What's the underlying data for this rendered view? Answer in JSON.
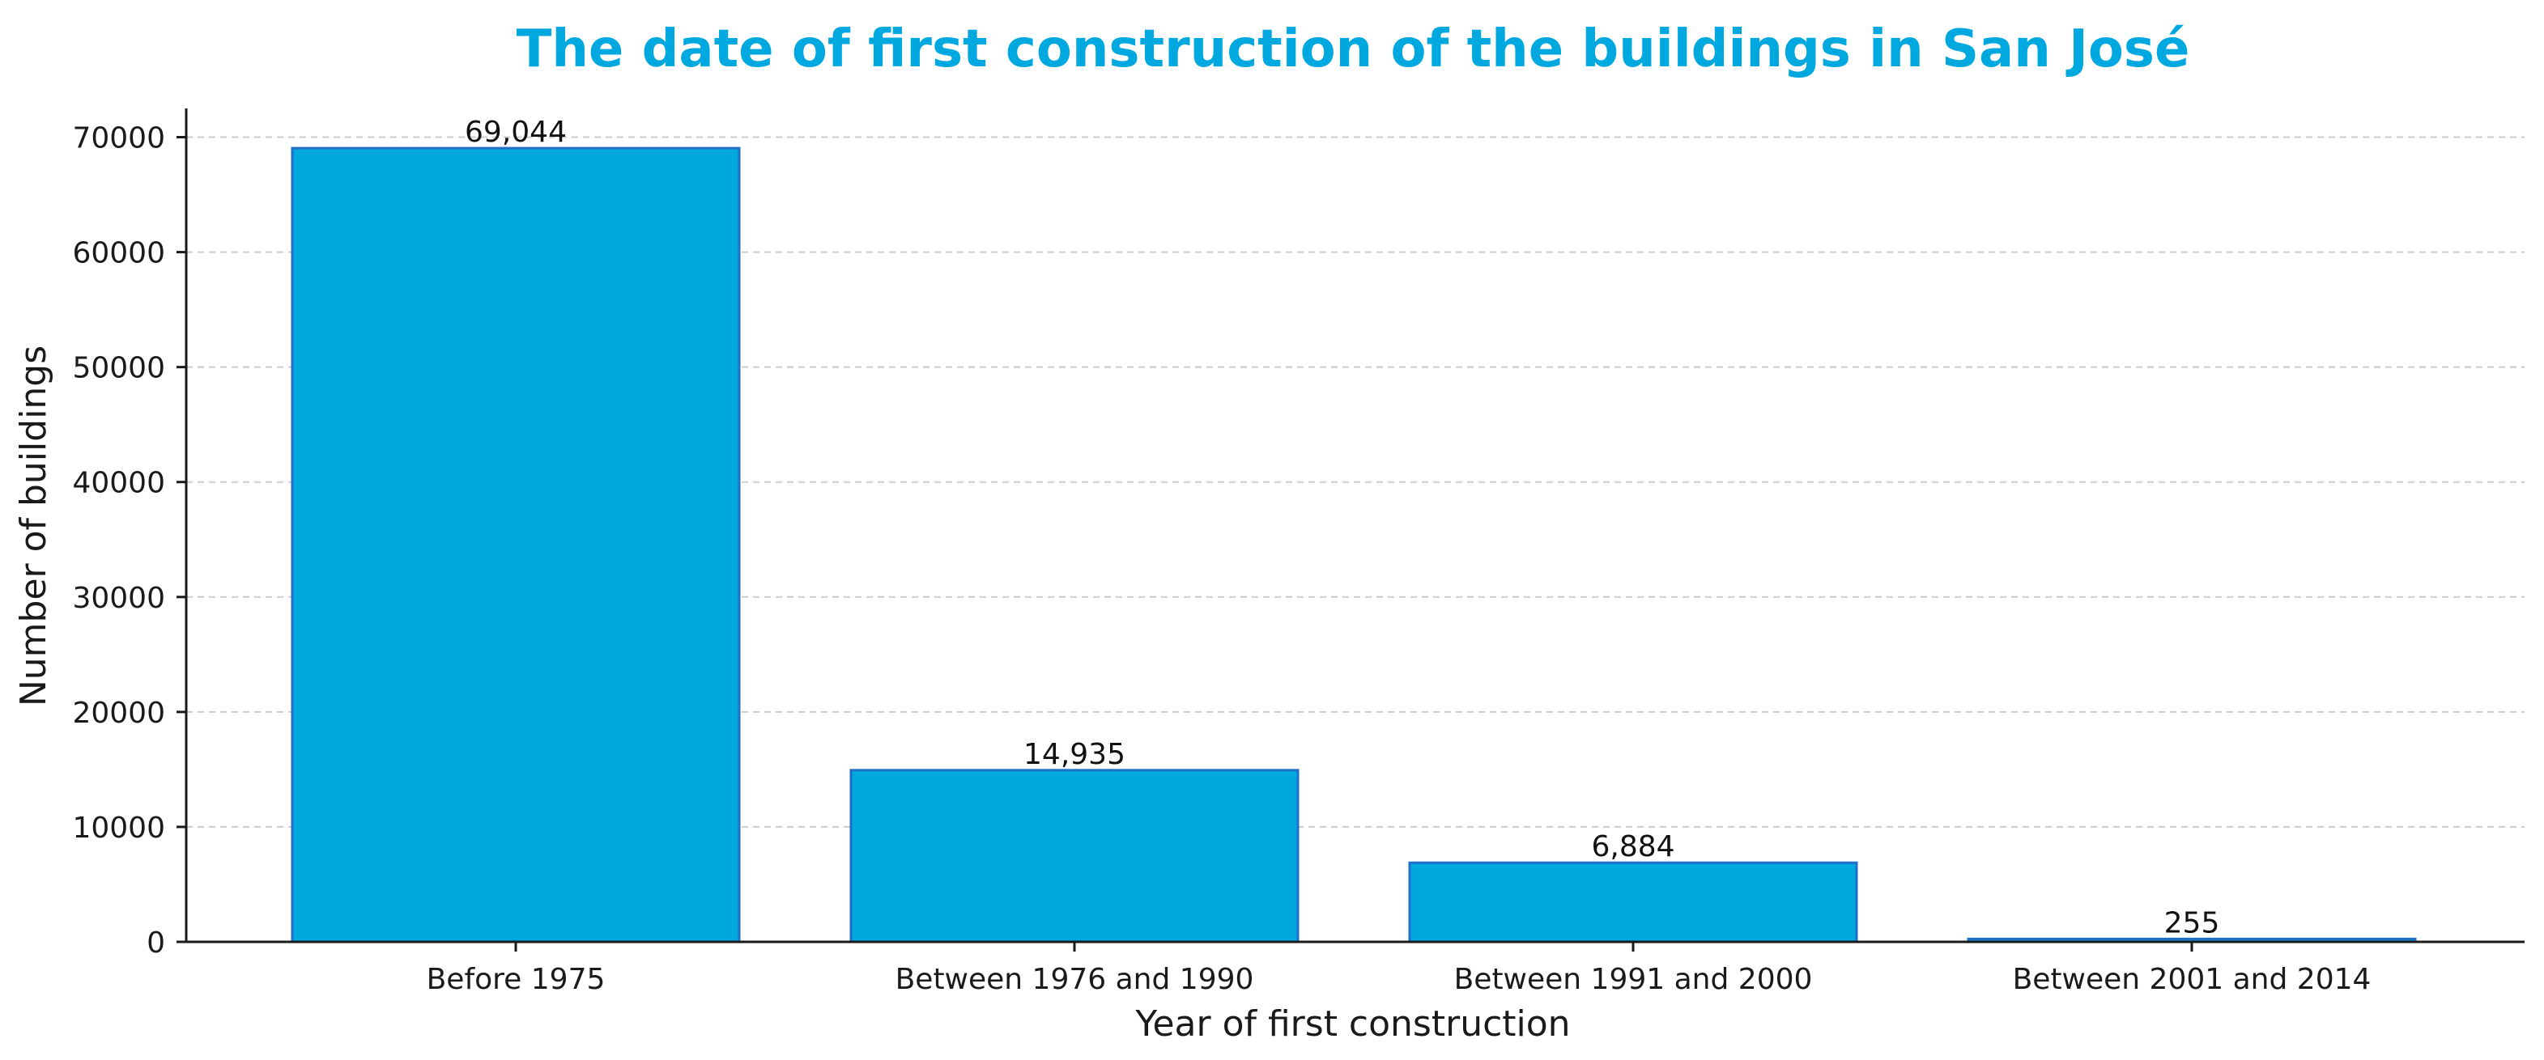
{
  "chart_data": {
    "type": "bar",
    "title": "The date of first construction of the buildings in San José",
    "xlabel": "Year of first construction",
    "ylabel": "Number of buildings",
    "categories": [
      "Before 1975",
      "Between 1976 and 1990",
      "Between 1991 and 2000",
      "Between 2001 and 2014"
    ],
    "values": [
      69044,
      14935,
      6884,
      255
    ],
    "data_labels": [
      "69,044",
      "14,935",
      "6,884",
      "255"
    ],
    "yticks": [
      0,
      10000,
      20000,
      30000,
      40000,
      50000,
      60000,
      70000
    ],
    "ylim": [
      0,
      72500
    ],
    "grid": "horizontal dashed",
    "colors": {
      "bar_fill": "#00a8e0",
      "bar_edge": "#1f6fc6",
      "title": "#00a8e0",
      "axis": "#1a1a1a",
      "grid": "#cccccc"
    }
  }
}
